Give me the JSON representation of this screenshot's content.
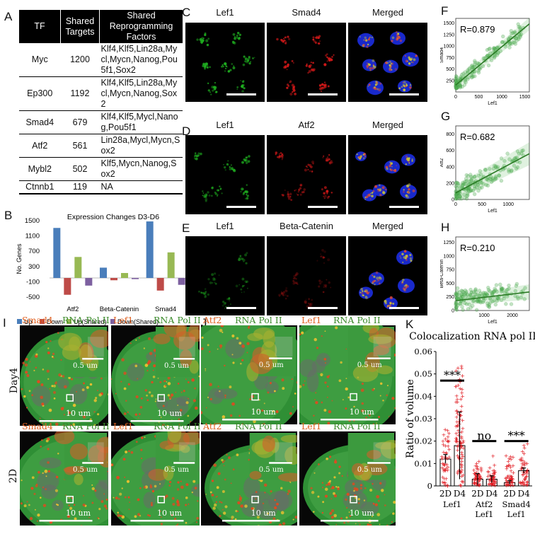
{
  "panels": {
    "A": "A",
    "B": "B",
    "C": "C",
    "D": "D",
    "E": "E",
    "F": "F",
    "G": "G",
    "H": "H",
    "I": "I",
    "J": "J",
    "K": "K"
  },
  "table": {
    "headers": [
      "TF",
      "Shared Targets",
      "Shared Reprogramming Factors"
    ],
    "rows": [
      {
        "tf": "Myc",
        "targets": "1200",
        "factors": "Klf4,Klf5,Lin28a,Mycl,Mycn,Nanog,Pou5f1,Sox2"
      },
      {
        "tf": "Ep300",
        "targets": "1192",
        "factors": "Klf4,Klf5,Lin28a,Mycl,Mycn,Nanog,Sox2"
      },
      {
        "tf": "Smad4",
        "targets": "679",
        "factors": "Klf4,Klf5,Mycl,Nanog,Pou5f1"
      },
      {
        "tf": "Atf2",
        "targets": "561",
        "factors": "Lin28a,Mycl,Mycn,Sox2"
      },
      {
        "tf": "Mybl2",
        "targets": "502",
        "factors": "Klf5,Mycn,Nanog,Sox2"
      },
      {
        "tf": "Ctnnb1",
        "targets": "119",
        "factors": "NA"
      }
    ]
  },
  "micro": {
    "rows": [
      {
        "letter": "C",
        "labels": [
          "Lef1",
          "Smad4",
          "Merged"
        ]
      },
      {
        "letter": "D",
        "labels": [
          "Lef1",
          "Atf2",
          "Merged"
        ]
      },
      {
        "letter": "E",
        "labels": [
          "Lef1",
          "Beta-Catenin",
          "Merged"
        ]
      }
    ]
  },
  "scatter": [
    {
      "letter": "F",
      "r": "R=0.879",
      "ylabel": "Smad4",
      "xlabel": "Lef1",
      "xticks": [
        "0",
        "500",
        "1000",
        "1500"
      ],
      "yticks": [
        "250",
        "500",
        "750",
        "1000",
        "1250",
        "1500"
      ],
      "xlim": [
        0,
        1600
      ],
      "ylim": [
        0,
        1600
      ],
      "fit": [
        [
          0,
          150
        ],
        [
          1600,
          1480
        ]
      ],
      "seed": 3,
      "slope": 0.83,
      "icpt": 150,
      "spread": 150
    },
    {
      "letter": "G",
      "r": "R=0.682",
      "ylabel": "Atf2",
      "xlabel": "Lef1",
      "xticks": [
        "0",
        "500",
        "1000"
      ],
      "yticks": [
        "0",
        "200",
        "400",
        "600",
        "800"
      ],
      "xlim": [
        0,
        1400
      ],
      "ylim": [
        0,
        900
      ],
      "fit": [
        [
          0,
          80
        ],
        [
          1400,
          560
        ]
      ],
      "seed": 7,
      "slope": 0.34,
      "icpt": 80,
      "spread": 120
    },
    {
      "letter": "H",
      "r": "R=0.210",
      "ylabel": "Beta-Catenin",
      "xlabel": "Lef1",
      "xticks": [
        "1000",
        "2000"
      ],
      "yticks": [
        "0",
        "250",
        "500",
        "750",
        "1000",
        "1250"
      ],
      "xlim": [
        0,
        2600
      ],
      "ylim": [
        0,
        1350
      ],
      "fit": [
        [
          0,
          180
        ],
        [
          2600,
          340
        ]
      ],
      "seed": 11,
      "slope": 0.06,
      "icpt": 180,
      "spread": 170
    }
  ],
  "chart_data": [
    {
      "type": "bar",
      "title": "Expression Changes D3-D6",
      "ylabel": "No. Genes",
      "categories": [
        "Atf2",
        "Beta-Catenin",
        "Smad4"
      ],
      "yticks": [
        "1500",
        "1100",
        "700",
        "300",
        "-100",
        "-500"
      ],
      "ylim": [
        -500,
        1500
      ],
      "series": [
        {
          "name": "Up",
          "color": "#4a7ebb",
          "values": [
            1310,
            270,
            1480
          ]
        },
        {
          "name": "Down",
          "color": "#be4b48",
          "values": [
            -440,
            -60,
            -330
          ]
        },
        {
          "name": "Up(Shared)",
          "color": "#98b954",
          "values": [
            550,
            130,
            670
          ]
        },
        {
          "name": "Down(Shared)",
          "color": "#7d60a0",
          "values": [
            -200,
            -30,
            -180
          ]
        }
      ],
      "legend_position": "bottom"
    },
    {
      "type": "bar",
      "title": "Colocalization RNA pol II",
      "ylabel": "Ratio of volume",
      "yticks": [
        "0",
        "0.01",
        "0.02",
        "0.03",
        "0.04",
        "0.05",
        "0.06"
      ],
      "ylim": [
        0,
        0.06
      ],
      "groups": [
        {
          "ticks": [
            "2D",
            "D4"
          ],
          "name": "Lef1",
          "sig": "***",
          "values": [
            0.012,
            0.018
          ],
          "err": [
            0.002,
            0.015
          ]
        },
        {
          "ticks": [
            "2D",
            "D4"
          ],
          "name": "Atf2\nLef1",
          "sig": "no",
          "values": [
            0.003,
            0.003
          ],
          "err": [
            0.0025,
            0.0015
          ]
        },
        {
          "ticks": [
            "2D",
            "D4"
          ],
          "name": "Smad4\nLef1",
          "sig": "***",
          "values": [
            0.0015,
            0.0068
          ],
          "err": [
            0.0008,
            0.0012
          ]
        }
      ]
    }
  ],
  "fluo": {
    "rowlabels": [
      "Day4",
      "2D"
    ],
    "I": {
      "top": [
        "Smad4",
        "RNA Pol II",
        "Lef1",
        "RNA Pol II"
      ],
      "bottom": [
        "Smad4",
        "RNA Pol II",
        "Lef1",
        "RNA Pol II"
      ]
    },
    "J": {
      "top": [
        "Atf2",
        "RNA Pol II",
        "Lef1",
        "RNA Pol II"
      ],
      "bottom": [
        "Atf2",
        "RNA Pol II",
        "Lef1",
        "RNA Pol II"
      ]
    },
    "scale_large": "10 um",
    "scale_small": "0.5 um"
  }
}
